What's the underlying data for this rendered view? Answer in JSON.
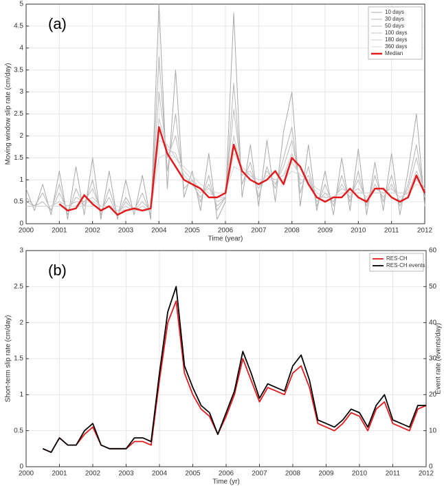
{
  "chart_data": [
    {
      "type": "line",
      "annotation": "(a)",
      "x_label": "Time (year)",
      "y_label": "Moving window slip rate (cm/day)",
      "x": [
        2000,
        2000.25,
        2000.5,
        2000.75,
        2001,
        2001.25,
        2001.5,
        2001.75,
        2002,
        2002.25,
        2002.5,
        2002.75,
        2003,
        2003.25,
        2003.5,
        2003.75,
        2004,
        2004.25,
        2004.5,
        2004.75,
        2005,
        2005.25,
        2005.5,
        2005.75,
        2006,
        2006.25,
        2006.5,
        2006.75,
        2007,
        2007.25,
        2007.5,
        2007.75,
        2008,
        2008.25,
        2008.5,
        2008.75,
        2009,
        2009.25,
        2009.5,
        2009.75,
        2010,
        2010.25,
        2010.5,
        2010.75,
        2011,
        2011.25,
        2011.5,
        2011.75,
        2012
      ],
      "series": [
        {
          "name": "10 days",
          "color": "#a8a8a8",
          "values": [
            0.8,
            0.3,
            0.9,
            0.2,
            1.2,
            0.1,
            1.3,
            0.2,
            1.5,
            0.1,
            1.2,
            0.1,
            1.0,
            0.2,
            1.1,
            0.1,
            5.0,
            0.8,
            3.5,
            0.6,
            1.2,
            0.3,
            1.6,
            0.1,
            0.5,
            4.8,
            0.6,
            1.8,
            0.4,
            1.9,
            0.5,
            2.1,
            3.0,
            0.4,
            1.8,
            0.3,
            1.2,
            0.2,
            1.5,
            0.3,
            1.7,
            0.2,
            1.4,
            0.3,
            1.6,
            0.2,
            1.2,
            2.5,
            0.4
          ]
        },
        {
          "name": "30 days",
          "color": "#b4b4b4",
          "values": [
            0.6,
            0.4,
            0.7,
            0.3,
            0.9,
            0.2,
            0.8,
            0.4,
            1.0,
            0.2,
            0.8,
            0.2,
            0.6,
            0.3,
            0.7,
            0.2,
            3.8,
            1.2,
            2.5,
            0.8,
            1.0,
            0.5,
            1.1,
            0.3,
            0.6,
            3.2,
            0.9,
            1.4,
            0.6,
            1.3,
            0.8,
            1.5,
            2.2,
            0.7,
            1.3,
            0.4,
            0.9,
            0.4,
            1.1,
            0.5,
            1.2,
            0.4,
            1.1,
            0.5,
            1.1,
            0.4,
            0.9,
            1.8,
            0.6
          ]
        },
        {
          "name": "50 days",
          "color": "#bcbcbc",
          "values": [
            0.5,
            0.4,
            0.5,
            0.3,
            0.7,
            0.3,
            0.6,
            0.5,
            0.8,
            0.3,
            0.6,
            0.2,
            0.5,
            0.3,
            0.5,
            0.3,
            3.0,
            1.5,
            2.0,
            1.0,
            0.9,
            0.6,
            0.9,
            0.4,
            0.6,
            2.6,
            1.1,
            1.2,
            0.8,
            1.2,
            0.9,
            1.3,
            1.9,
            0.9,
            1.1,
            0.5,
            0.7,
            0.5,
            0.9,
            0.6,
            1.0,
            0.5,
            0.9,
            0.6,
            0.9,
            0.5,
            0.8,
            1.5,
            0.7
          ]
        },
        {
          "name": "100 days",
          "color": "#c4c4c4",
          "values": [
            0.4,
            0.4,
            0.4,
            0.4,
            0.5,
            0.4,
            0.5,
            0.5,
            0.6,
            0.4,
            0.4,
            0.3,
            0.4,
            0.3,
            0.4,
            0.3,
            2.4,
            1.7,
            1.6,
            1.1,
            0.9,
            0.7,
            0.8,
            0.5,
            0.6,
            2.0,
            1.2,
            1.1,
            0.9,
            1.1,
            1.0,
            1.1,
            1.6,
            1.0,
            1.0,
            0.6,
            0.6,
            0.6,
            0.8,
            0.7,
            0.8,
            0.6,
            0.8,
            0.7,
            0.8,
            0.6,
            0.7,
            1.2,
            0.8
          ]
        },
        {
          "name": "180 days",
          "color": "#cccccc",
          "values": [
            null,
            0.4,
            0.4,
            0.4,
            0.4,
            0.4,
            0.4,
            0.5,
            0.5,
            0.4,
            0.4,
            0.3,
            0.3,
            0.3,
            0.3,
            0.3,
            1.9,
            1.8,
            1.5,
            1.2,
            1.0,
            0.8,
            0.7,
            0.6,
            0.6,
            1.6,
            1.3,
            1.1,
            1.0,
            1.0,
            1.0,
            1.1,
            1.4,
            1.1,
            1.0,
            0.7,
            0.6,
            0.6,
            0.7,
            0.7,
            0.7,
            0.7,
            0.7,
            0.7,
            0.7,
            0.7,
            0.7,
            1.0,
            0.8
          ]
        },
        {
          "name": "360 days",
          "color": "#d4d4d4",
          "values": [
            null,
            null,
            0.4,
            0.4,
            0.4,
            0.4,
            0.4,
            0.4,
            0.4,
            0.4,
            0.4,
            0.4,
            0.3,
            0.3,
            0.3,
            0.3,
            1.5,
            1.6,
            1.5,
            1.3,
            1.1,
            0.9,
            0.8,
            0.7,
            0.7,
            1.3,
            1.2,
            1.1,
            1.0,
            1.0,
            1.0,
            1.0,
            1.2,
            1.1,
            1.0,
            0.8,
            0.7,
            0.6,
            0.7,
            0.7,
            0.7,
            0.7,
            0.7,
            0.7,
            0.7,
            0.7,
            0.7,
            0.9,
            0.8
          ]
        },
        {
          "name": "Median",
          "color": "#e31a1c",
          "width": 2.5,
          "values": [
            null,
            null,
            null,
            null,
            0.45,
            0.3,
            0.35,
            0.65,
            0.45,
            0.3,
            0.4,
            0.2,
            0.3,
            0.35,
            0.3,
            0.35,
            2.2,
            1.6,
            1.3,
            1.0,
            0.9,
            0.8,
            0.6,
            0.6,
            0.7,
            1.8,
            1.2,
            1.0,
            0.9,
            1.0,
            1.2,
            0.9,
            1.5,
            1.3,
            0.9,
            0.6,
            0.5,
            0.6,
            0.6,
            0.8,
            0.6,
            0.5,
            0.8,
            0.8,
            0.6,
            0.5,
            0.6,
            1.1,
            0.7
          ]
        }
      ],
      "xlim": [
        2000,
        2012
      ],
      "xticks": [
        2000,
        2001,
        2002,
        2003,
        2004,
        2005,
        2006,
        2007,
        2008,
        2009,
        2010,
        2011,
        2012
      ],
      "ylim": [
        0,
        5
      ],
      "yticks": [
        0,
        0.5,
        1,
        1.5,
        2,
        2.5,
        3,
        3.5,
        4,
        4.5,
        5
      ],
      "grid": true,
      "legend": "top-right"
    },
    {
      "type": "line",
      "annotation": "(b)",
      "x_label": "Time (yr)",
      "y_label": "Short-term slip rate (cm/day)",
      "y2_label": "Event rate (events/day)",
      "x": [
        2000.5,
        2000.75,
        2001,
        2001.25,
        2001.5,
        2001.75,
        2002,
        2002.25,
        2002.5,
        2002.75,
        2003,
        2003.25,
        2003.5,
        2003.75,
        2004,
        2004.25,
        2004.5,
        2004.75,
        2005,
        2005.25,
        2005.5,
        2005.75,
        2006,
        2006.25,
        2006.5,
        2006.75,
        2007,
        2007.25,
        2007.5,
        2007.75,
        2008,
        2008.25,
        2008.5,
        2008.75,
        2009,
        2009.25,
        2009.5,
        2009.75,
        2010,
        2010.25,
        2010.5,
        2010.75,
        2011,
        2011.25,
        2011.5,
        2011.75,
        2012
      ],
      "series": [
        {
          "name": "RES-CH",
          "color": "#e31a1c",
          "width": 1.8,
          "values": [
            0.25,
            0.2,
            0.4,
            0.3,
            0.3,
            0.45,
            0.55,
            0.3,
            0.25,
            0.25,
            0.25,
            0.35,
            0.35,
            0.3,
            1.2,
            2.0,
            2.3,
            1.3,
            1.0,
            0.8,
            0.7,
            0.45,
            0.7,
            1.0,
            1.5,
            1.2,
            0.9,
            1.1,
            1.05,
            1.0,
            1.3,
            1.4,
            1.1,
            0.6,
            0.55,
            0.5,
            0.6,
            0.75,
            0.7,
            0.5,
            0.8,
            0.9,
            0.6,
            0.55,
            0.5,
            0.8,
            0.85
          ]
        },
        {
          "name": "RES-CH events",
          "color": "#000000",
          "width": 1.8,
          "axis": "y2",
          "values": [
            5,
            4,
            8,
            6,
            6,
            10,
            12,
            6,
            5,
            5,
            5,
            8,
            8,
            7,
            26,
            43,
            50,
            28,
            22,
            17,
            15,
            9,
            15,
            21,
            32,
            26,
            19,
            23,
            22,
            21,
            28,
            31,
            24,
            13,
            12,
            11,
            13,
            16,
            15,
            11,
            17,
            20,
            13,
            12,
            11,
            17,
            17
          ]
        }
      ],
      "xlim": [
        2000,
        2012
      ],
      "xticks": [
        2000,
        2001,
        2002,
        2003,
        2004,
        2005,
        2006,
        2007,
        2008,
        2009,
        2010,
        2011,
        2012
      ],
      "ylim": [
        0,
        3
      ],
      "yticks": [
        0,
        0.5,
        1,
        1.5,
        2,
        2.5,
        3
      ],
      "y2lim": [
        0,
        60
      ],
      "y2ticks": [
        0,
        10,
        20,
        30,
        40,
        50,
        60
      ],
      "grid": true,
      "legend": "top-right"
    }
  ]
}
